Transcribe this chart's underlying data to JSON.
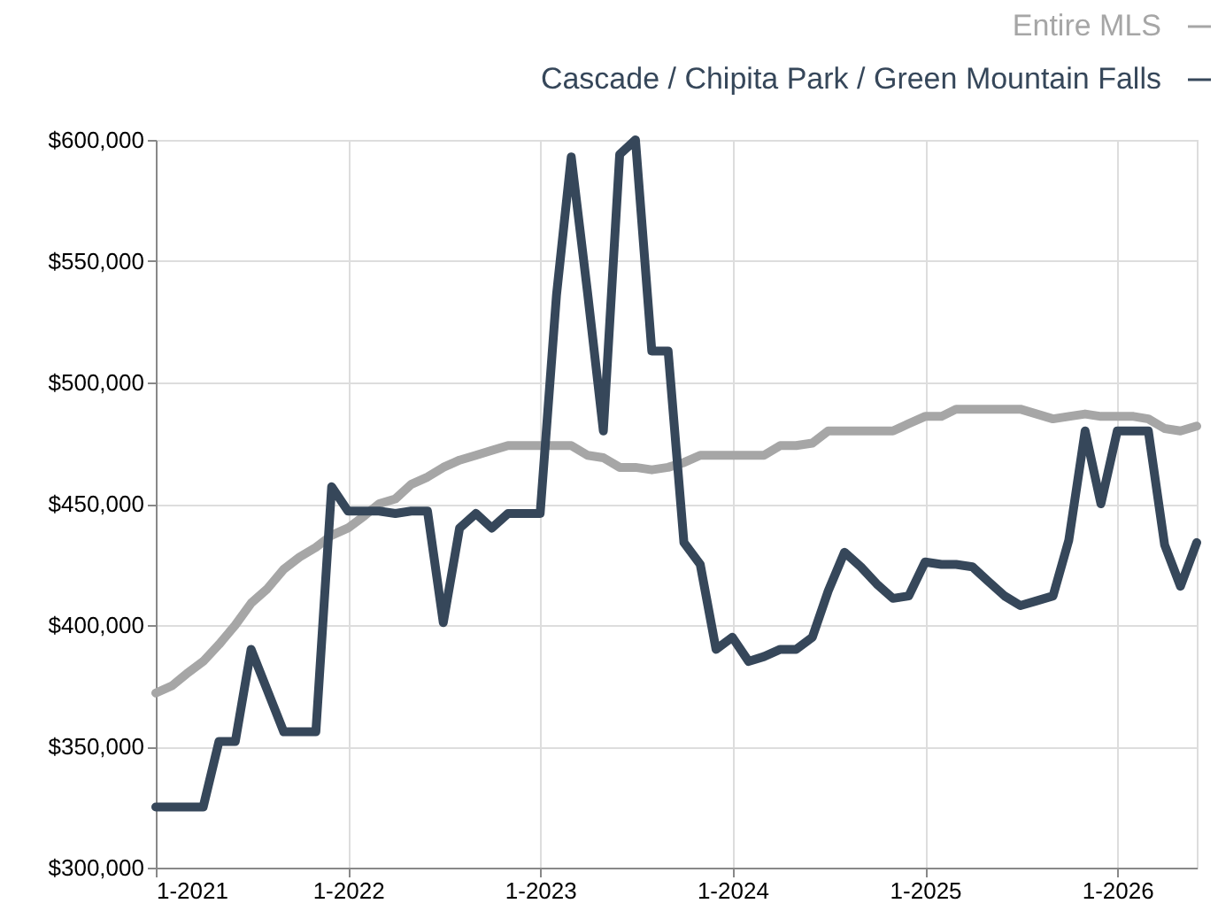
{
  "chart_data": {
    "type": "line",
    "legend": "top right",
    "grid": true,
    "line_style": "solid",
    "marker": "none",
    "xlim": [
      "2021-01",
      "2026-06"
    ],
    "xticks": [
      {
        "value": "2021-01",
        "label": "1-2021"
      },
      {
        "value": "2022-01",
        "label": "1-2022"
      },
      {
        "value": "2023-01",
        "label": "1-2023"
      },
      {
        "value": "2024-01",
        "label": "1-2024"
      },
      {
        "value": "2025-01",
        "label": "1-2025"
      },
      {
        "value": "2026-01",
        "label": "1-2026"
      }
    ],
    "ylim": [
      300000,
      600000
    ],
    "yticks": [
      {
        "value": 300000,
        "label": "$300,000"
      },
      {
        "value": 350000,
        "label": "$350,000"
      },
      {
        "value": 400000,
        "label": "$400,000"
      },
      {
        "value": 450000,
        "label": "$450,000"
      },
      {
        "value": 500000,
        "label": "$500,000"
      },
      {
        "value": 550000,
        "label": "$550,000"
      },
      {
        "value": 600000,
        "label": "$600,000"
      }
    ],
    "x": [
      "2021-01",
      "2021-02",
      "2021-03",
      "2021-04",
      "2021-05",
      "2021-06",
      "2021-07",
      "2021-08",
      "2021-09",
      "2021-10",
      "2021-11",
      "2021-12",
      "2022-01",
      "2022-02",
      "2022-03",
      "2022-04",
      "2022-05",
      "2022-06",
      "2022-07",
      "2022-08",
      "2022-09",
      "2022-10",
      "2022-11",
      "2022-12",
      "2023-01",
      "2023-02",
      "2023-03",
      "2023-04",
      "2023-05",
      "2023-06",
      "2023-07",
      "2023-08",
      "2023-09",
      "2023-10",
      "2023-11",
      "2023-12",
      "2024-01",
      "2024-02",
      "2024-03",
      "2024-04",
      "2024-05",
      "2024-06",
      "2024-07",
      "2024-08",
      "2024-09",
      "2024-10",
      "2024-11",
      "2024-12",
      "2025-01",
      "2025-02",
      "2025-03",
      "2025-04",
      "2025-05",
      "2025-06",
      "2025-07",
      "2025-08",
      "2025-09",
      "2025-10",
      "2025-11",
      "2025-12",
      "2026-01",
      "2026-02",
      "2026-03",
      "2026-04",
      "2026-05",
      "2026-06"
    ],
    "series": [
      {
        "name": "Entire MLS",
        "color": "#a6a6a6",
        "values": [
          372000,
          375000,
          380000,
          385000,
          392000,
          400000,
          409000,
          415000,
          423000,
          428000,
          432000,
          437000,
          440000,
          445000,
          450000,
          452000,
          458000,
          461000,
          465000,
          468000,
          470000,
          472000,
          474000,
          474000,
          474000,
          474000,
          474000,
          470000,
          469000,
          465000,
          465000,
          464000,
          465000,
          467000,
          470000,
          470000,
          470000,
          470000,
          470000,
          474000,
          474000,
          475000,
          480000,
          480000,
          480000,
          480000,
          480000,
          483000,
          486000,
          486000,
          489000,
          489000,
          489000,
          489000,
          489000,
          487000,
          485000,
          486000,
          487000,
          486000,
          486000,
          486000,
          485000,
          481000,
          480000,
          482000
        ]
      },
      {
        "name": "Cascade / Chipita Park / Green Mountain Falls",
        "color": "#36475a",
        "values": [
          325000,
          325000,
          325000,
          325000,
          352000,
          352000,
          390000,
          373000,
          356000,
          356000,
          356000,
          457000,
          447000,
          447000,
          447000,
          446000,
          447000,
          447000,
          401000,
          440000,
          446000,
          440000,
          446000,
          446000,
          446000,
          536000,
          593000,
          537000,
          480000,
          594000,
          600000,
          513000,
          513000,
          434000,
          425000,
          390000,
          395000,
          385000,
          387000,
          390000,
          390000,
          395000,
          414000,
          430000,
          424000,
          417000,
          411000,
          412000,
          426000,
          425000,
          425000,
          424000,
          418000,
          412000,
          408000,
          410000,
          412000,
          435000,
          480000,
          450000,
          480000,
          480000,
          480000,
          433000,
          416000,
          434000
        ]
      }
    ]
  }
}
